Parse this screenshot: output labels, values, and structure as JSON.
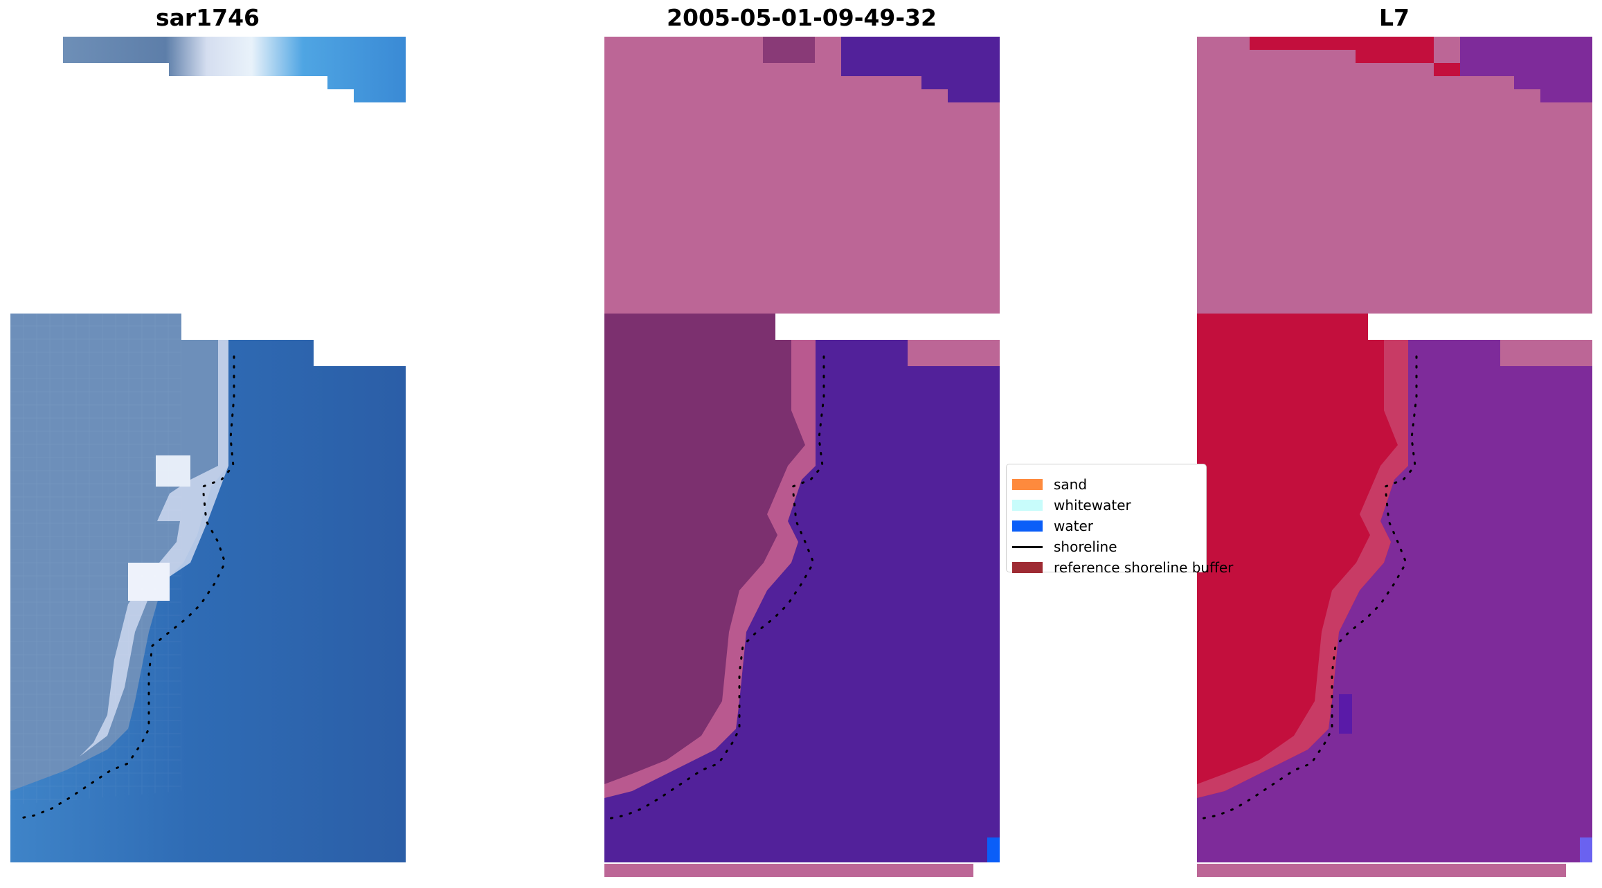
{
  "panels": [
    {
      "title": "sar1746",
      "icon": "satellite-rgb-image"
    },
    {
      "title": "2005-05-01-09-49-32",
      "icon": "classified-image"
    },
    {
      "title": "L7",
      "icon": "index-image"
    }
  ],
  "legend": {
    "items": [
      {
        "label": "sand",
        "color": "#fe8a3d",
        "kind": "patch"
      },
      {
        "label": "whitewater",
        "color": "#c8fcfb",
        "kind": "patch"
      },
      {
        "label": "water",
        "color": "#0a5ef8",
        "kind": "patch"
      },
      {
        "label": "shoreline",
        "color": "#000000",
        "kind": "line"
      },
      {
        "label": "reference shoreline buffer",
        "color": "#9e2b33",
        "kind": "patch"
      }
    ]
  },
  "colors": {
    "rgb_land": "#6b8fba",
    "rgb_water": "#2d63ad",
    "rgb_whitewater": "#dfe7f5",
    "rgb_light_water": "#3f9be0",
    "class_land": "#bc6696",
    "class_land_dark": "#7c306f",
    "class_water": "#52219a",
    "class_water_blue": "#0a5ef8",
    "index_land": "#bc6696",
    "index_red": "#c30f3d",
    "index_purple": "#7e2b9a",
    "index_blue": "#6a62f0",
    "shoreline_dots": "#000000"
  }
}
